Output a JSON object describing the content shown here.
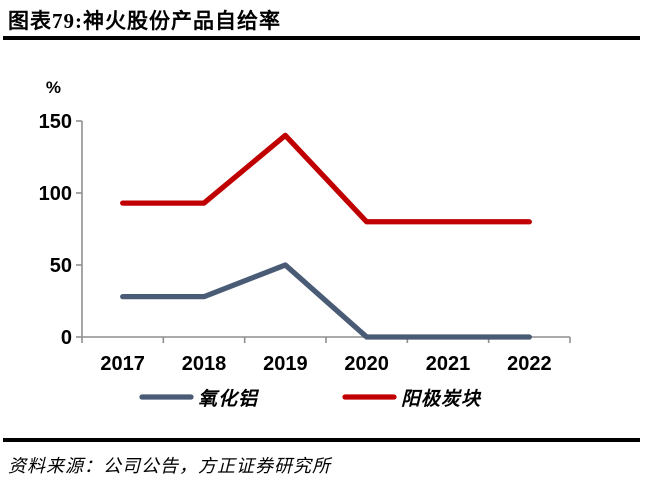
{
  "header": {
    "title": "图表79:神火股份产品自给率"
  },
  "footer": {
    "source": "资料来源：公司公告，方正证券研究所"
  },
  "chart_data": {
    "type": "line",
    "title": "图表79:神火股份产品自给率",
    "categories": [
      "2017",
      "2018",
      "2019",
      "2020",
      "2021",
      "2022"
    ],
    "series": [
      {
        "name": "氧化铝",
        "color": "#4a5b76",
        "values": [
          28,
          28,
          50,
          0,
          0,
          0
        ]
      },
      {
        "name": "阳极炭块",
        "color": "#c00000",
        "values": [
          93,
          93,
          140,
          80,
          80,
          80
        ]
      }
    ],
    "ylabel": "%",
    "yticks": [
      0,
      50,
      100,
      150
    ],
    "ylim": [
      0,
      150
    ],
    "grid": false,
    "legend_position": "bottom",
    "axis_color": "#8f8f8f",
    "source": "资料来源：公司公告，方正证券研究所"
  }
}
